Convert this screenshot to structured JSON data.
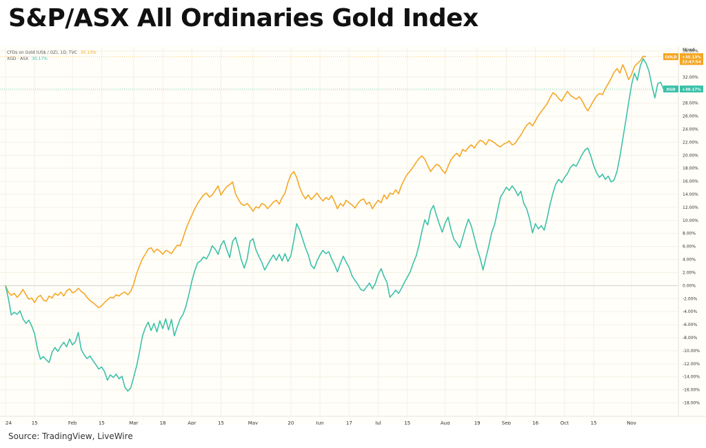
{
  "title": "S&P/ASX All Ordinaries Gold Index",
  "source": "Source: TradingView, LiveWire",
  "chart_data": {
    "type": "line",
    "title": "S&P/ASX All Ordinaries Gold Index",
    "scale_label": "Mixed",
    "ylim": [
      -19,
      36
    ],
    "y_unit": "%",
    "y_ticks": [
      -18,
      -16,
      -14,
      -12,
      -10,
      -8,
      -6,
      -4,
      -2,
      0,
      2,
      4,
      6,
      8,
      10,
      12,
      14,
      16,
      18,
      20,
      22,
      24,
      26,
      28,
      30,
      32,
      36
    ],
    "x_ticks": [
      {
        "label": "24",
        "idx": 0
      },
      {
        "label": "15",
        "idx": 10
      },
      {
        "label": "Feb",
        "idx": 23
      },
      {
        "label": "15",
        "idx": 33
      },
      {
        "label": "Mar",
        "idx": 44
      },
      {
        "label": "18",
        "idx": 54
      },
      {
        "label": "Apr",
        "idx": 64
      },
      {
        "label": "15",
        "idx": 74
      },
      {
        "label": "May",
        "idx": 85
      },
      {
        "label": "20",
        "idx": 98
      },
      {
        "label": "Jun",
        "idx": 108
      },
      {
        "label": "17",
        "idx": 118
      },
      {
        "label": "Jul",
        "idx": 128
      },
      {
        "label": "15",
        "idx": 138
      },
      {
        "label": "Aug",
        "idx": 151
      },
      {
        "label": "19",
        "idx": 162
      },
      {
        "label": "Sep",
        "idx": 172
      },
      {
        "label": "16",
        "idx": 182
      },
      {
        "label": "Oct",
        "idx": 192
      },
      {
        "label": "15",
        "idx": 202
      },
      {
        "label": "Nov",
        "idx": 215
      }
    ],
    "grid": true,
    "legend": "top-left",
    "series": [
      {
        "name": "CFDs on Gold (US$ / OZ), 1D, TVC",
        "legend_value": "35.13%",
        "badge_label": "GOLD",
        "badge_value": "+35.13%",
        "badge_sub": "22:47:54",
        "color": "#f5a623",
        "values": [
          0,
          -1,
          -1.5,
          -1.2,
          -1.8,
          -1.3,
          -0.6,
          -1.4,
          -2.1,
          -1.9,
          -2.6,
          -1.8,
          -1.5,
          -2.2,
          -2.4,
          -1.6,
          -1.9,
          -1.2,
          -1.5,
          -1,
          -1.6,
          -0.8,
          -0.5,
          -1.1,
          -0.9,
          -0.4,
          -0.9,
          -1.2,
          -1.8,
          -2.3,
          -2.6,
          -3,
          -3.4,
          -3.1,
          -2.6,
          -2.2,
          -1.8,
          -1.9,
          -1.4,
          -1.6,
          -1.2,
          -1,
          -1.4,
          -0.9,
          0.2,
          1.8,
          3,
          4.1,
          4.8,
          5.6,
          5.8,
          5.1,
          5.6,
          5.3,
          4.8,
          5.4,
          5.2,
          4.9,
          5.6,
          6.2,
          6.1,
          7.3,
          8.7,
          9.8,
          10.8,
          11.8,
          12.6,
          13.3,
          13.9,
          14.2,
          13.6,
          13.9,
          14.6,
          15.3,
          13.9,
          14.6,
          15.2,
          15.5,
          15.9,
          14.1,
          13.2,
          12.5,
          12.3,
          12.6,
          12.1,
          11.4,
          12.1,
          11.9,
          12.6,
          12.4,
          11.8,
          12.3,
          12.8,
          13.1,
          12.5,
          13.5,
          14.2,
          15.8,
          17,
          17.5,
          16.6,
          15.1,
          14,
          13.3,
          13.9,
          13.2,
          13.7,
          14.2,
          13.5,
          13,
          13.5,
          13.2,
          13.8,
          12.9,
          11.8,
          12.6,
          12.2,
          13.1,
          12.7,
          12.4,
          11.9,
          12.6,
          13.1,
          13.3,
          12.5,
          12.8,
          11.8,
          12.5,
          13.1,
          12.7,
          13.9,
          13.3,
          14.2,
          14,
          14.7,
          14.1,
          15.4,
          16.3,
          17.1,
          17.6,
          18.2,
          18.9,
          19.5,
          19.9,
          19.4,
          18.4,
          17.5,
          18.1,
          18.6,
          18.4,
          17.7,
          17.2,
          18.3,
          19.3,
          19.9,
          20.3,
          19.8,
          20.9,
          20.6,
          21.2,
          21.6,
          21.1,
          21.8,
          22.3,
          22.1,
          21.6,
          22.4,
          22.2,
          21.9,
          21.5,
          21.3,
          21.7,
          21.9,
          22.2,
          21.6,
          21.8,
          22.5,
          23.1,
          23.9,
          24.6,
          25,
          24.5,
          25.3,
          26.1,
          26.7,
          27.3,
          27.9,
          28.8,
          29.6,
          29.3,
          28.7,
          28.3,
          29.1,
          29.8,
          29.2,
          28.9,
          28.6,
          29,
          28.4,
          27.5,
          26.8,
          27.6,
          28.4,
          29.1,
          29.5,
          29.3,
          30.2,
          31,
          31.8,
          32.7,
          33.3,
          32.6,
          33.9,
          32.9,
          31.6,
          32.4,
          33.6,
          34.1,
          34.5,
          35.2,
          35.13
        ]
      },
      {
        "name": "XGD · ASX",
        "legend_value": "30.17%",
        "badge_label": "XGD",
        "badge_value": "+30.17%",
        "color": "#3cc0a8",
        "values": [
          0,
          -2,
          -4.5,
          -4.1,
          -4.4,
          -3.9,
          -5.1,
          -5.8,
          -5.3,
          -6.2,
          -7.4,
          -9.8,
          -11.3,
          -10.9,
          -11.4,
          -11.8,
          -10.2,
          -9.5,
          -10.1,
          -9.3,
          -8.7,
          -9.4,
          -8.2,
          -9.1,
          -8.6,
          -7.2,
          -9.8,
          -10.6,
          -11.2,
          -10.8,
          -11.5,
          -12.1,
          -12.8,
          -12.5,
          -13.2,
          -14.5,
          -13.7,
          -14.1,
          -13.6,
          -14.3,
          -13.9,
          -15.6,
          -16.2,
          -15.7,
          -14.1,
          -12.4,
          -10.2,
          -7.8,
          -6.5,
          -5.6,
          -6.9,
          -5.8,
          -7.1,
          -5.4,
          -6.6,
          -5.1,
          -6.8,
          -5.2,
          -7.7,
          -6.3,
          -5.1,
          -4.4,
          -3.1,
          -1.3,
          0.7,
          2.3,
          3.5,
          3.8,
          4.4,
          4.1,
          4.9,
          6.1,
          5.6,
          4.8,
          6.2,
          6.9,
          5.5,
          4.3,
          6.8,
          7.4,
          5.8,
          3.9,
          2.7,
          4.1,
          6.8,
          7.2,
          5.5,
          4.5,
          3.6,
          2.4,
          3.2,
          4,
          4.7,
          3.9,
          4.8,
          3.8,
          4.9,
          3.7,
          4.6,
          6.9,
          9.5,
          8.6,
          7.2,
          5.8,
          4.7,
          3.1,
          2.6,
          3.8,
          4.7,
          5.4,
          4.9,
          5.2,
          4.1,
          3.2,
          2.1,
          3.4,
          4.5,
          3.6,
          2.8,
          1.5,
          0.8,
          0.2,
          -0.6,
          -0.8,
          -0.2,
          0.4,
          -0.5,
          0.3,
          1.7,
          2.6,
          1.4,
          0.5,
          -1.8,
          -1.3,
          -0.7,
          -1.2,
          -0.4,
          0.5,
          1.3,
          2.1,
          3.4,
          4.5,
          6.2,
          8.3,
          10.1,
          9.3,
          11.5,
          12.3,
          10.8,
          9.4,
          8.2,
          9.6,
          10.5,
          8.6,
          7.1,
          6.5,
          5.8,
          7.3,
          8.9,
          10.2,
          9.1,
          7.4,
          5.6,
          4.2,
          2.4,
          4.3,
          6.1,
          8.2,
          9.4,
          11.5,
          13.6,
          14.3,
          15.1,
          14.6,
          15.3,
          14.7,
          13.8,
          14.5,
          12.6,
          11.8,
          10.2,
          8.1,
          9.5,
          8.7,
          9.2,
          8.5,
          10.3,
          12.4,
          14.2,
          15.6,
          16.3,
          15.8,
          16.6,
          17.2,
          18.1,
          18.6,
          18.3,
          19.2,
          20.1,
          20.8,
          21.1,
          19.9,
          18.4,
          17.3,
          16.6,
          17.1,
          16.3,
          16.8,
          15.9,
          16.2,
          17.5,
          19.8,
          22.5,
          25.2,
          28.1,
          30.8,
          32.6,
          31.5,
          33.7,
          34.8,
          34.1,
          32.9,
          30.7,
          28.8,
          31,
          31.2,
          30.17
        ]
      }
    ]
  }
}
